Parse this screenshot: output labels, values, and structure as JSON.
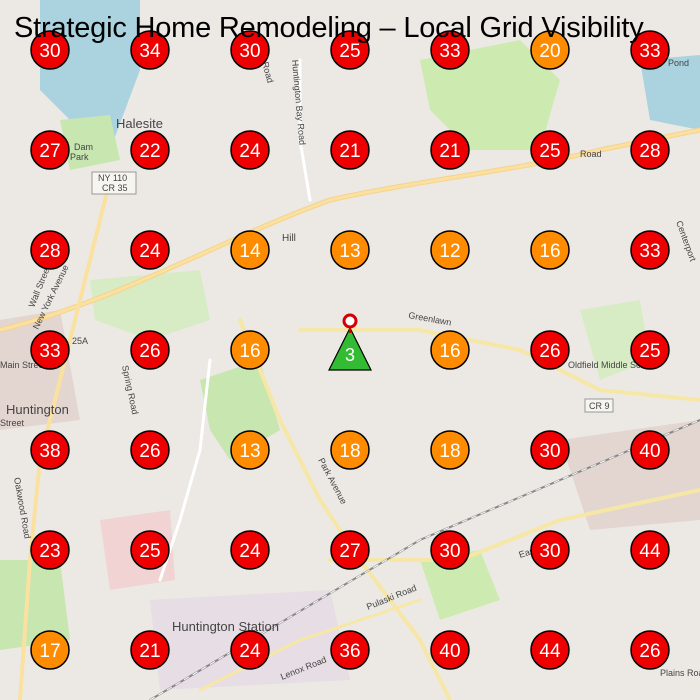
{
  "title": "Strategic Home Remodeling – Local Grid Visibility",
  "colors": {
    "high": "#ee0000",
    "medium": "#ff8c00",
    "center": "#33bb33",
    "stroke": "#000000",
    "road_major": "#fbe1a0",
    "water": "#aad3df",
    "park": "#c8e6b0",
    "urban": "#e6d8d3"
  },
  "legend_thresholds": {
    "medium_max": 20
  },
  "center_marker": {
    "rank": "3",
    "icon": "green-triangle-marker"
  },
  "pin_marker": {
    "icon": "red-location-pin"
  },
  "grid": [
    [
      30,
      34,
      30,
      25,
      33,
      20,
      33
    ],
    [
      27,
      22,
      24,
      21,
      21,
      25,
      28
    ],
    [
      28,
      24,
      14,
      13,
      12,
      16,
      33
    ],
    [
      33,
      26,
      16,
      null,
      16,
      26,
      25
    ],
    [
      38,
      26,
      13,
      18,
      18,
      30,
      40
    ],
    [
      23,
      25,
      24,
      27,
      30,
      30,
      44
    ],
    [
      17,
      21,
      24,
      36,
      40,
      44,
      26
    ]
  ],
  "map_labels": [
    {
      "text": "Halesite"
    },
    {
      "text": "Huntington"
    },
    {
      "text": "Huntington Station"
    },
    {
      "text": "NY 110"
    },
    {
      "text": "CR 35"
    },
    {
      "text": "CR 9"
    },
    {
      "text": "25A"
    },
    {
      "text": "Huntington Bay Road"
    },
    {
      "text": "Park Avenue"
    },
    {
      "text": "New York Avenue"
    },
    {
      "text": "Spring Road"
    },
    {
      "text": "Greenlawn"
    },
    {
      "text": "Oldfield Middle School"
    },
    {
      "text": "Lenox Road"
    },
    {
      "text": "Pulaski Road"
    },
    {
      "text": "Oakwood Road"
    },
    {
      "text": "Main Street"
    },
    {
      "text": "Wall Street"
    },
    {
      "text": "Dam"
    },
    {
      "text": "Park"
    },
    {
      "text": "Hill"
    },
    {
      "text": "Centerport"
    },
    {
      "text": "East Road"
    },
    {
      "text": "Plains Road"
    },
    {
      "text": "Pond"
    },
    {
      "text": "Cove Road"
    },
    {
      "text": "Road"
    },
    {
      "text": "Street"
    }
  ]
}
